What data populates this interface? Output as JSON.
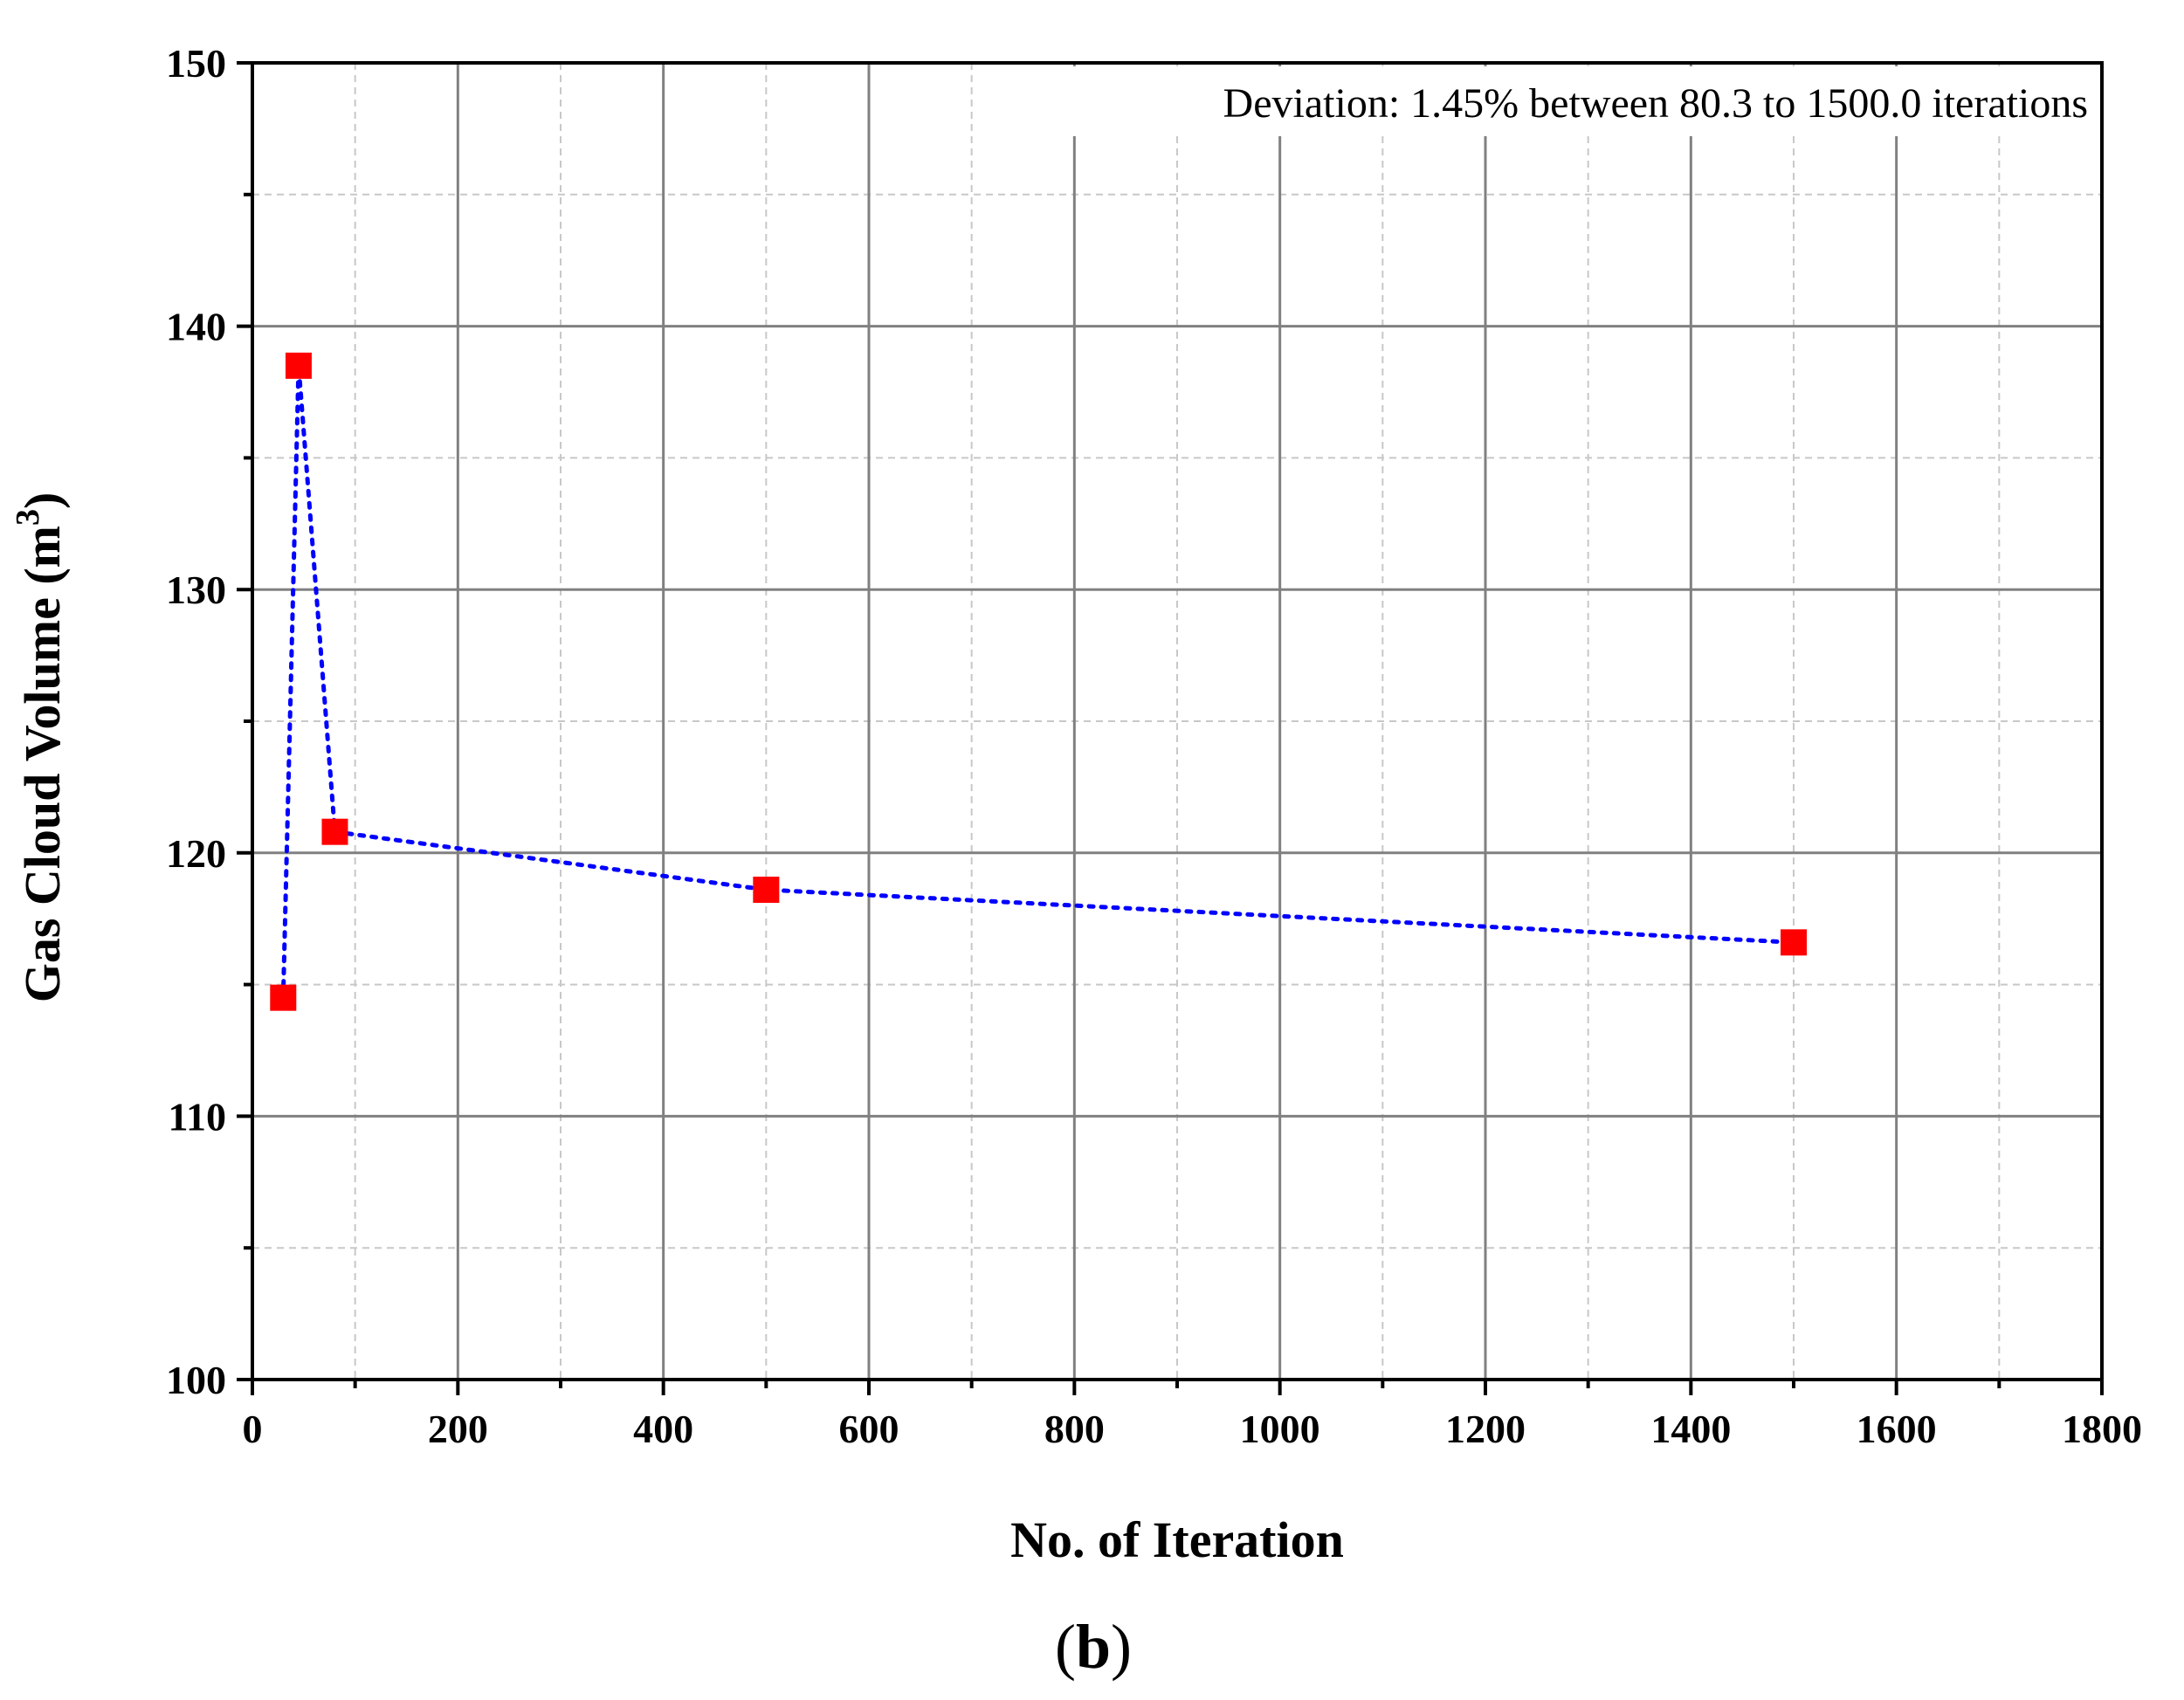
{
  "chart_data": {
    "type": "line",
    "title": "",
    "xlabel": "No. of Iteration",
    "ylabel": "Gas Cloud Volume (m",
    "ylabel_superscript": "3",
    "ylabel_close": ")",
    "xlim": [
      0,
      1800
    ],
    "ylim": [
      100,
      150
    ],
    "x_ticks": [
      0,
      200,
      400,
      600,
      800,
      1000,
      1200,
      1400,
      1600,
      1800
    ],
    "y_ticks": [
      100,
      110,
      120,
      130,
      140,
      150
    ],
    "grid": true,
    "series": [
      {
        "name": "Gas Cloud Volume",
        "x": [
          30,
          45,
          80.3,
          500,
          1500
        ],
        "y": [
          114.5,
          138.5,
          120.8,
          118.6,
          116.6
        ],
        "marker": "square",
        "marker_color": "#ff0000",
        "line_style": "dotted",
        "line_color": "#0000ff"
      }
    ],
    "annotation": "Deviation: 1.45% between 80.3 to 1500.0 iterations",
    "panel_label_open": "(",
    "panel_label_letter": "b",
    "panel_label_close": ")"
  },
  "colors": {
    "marker": "#ff0000",
    "line": "#0000ff",
    "major_grid": "#808080",
    "minor_grid": "#c8c8c8",
    "axis": "#000000"
  }
}
